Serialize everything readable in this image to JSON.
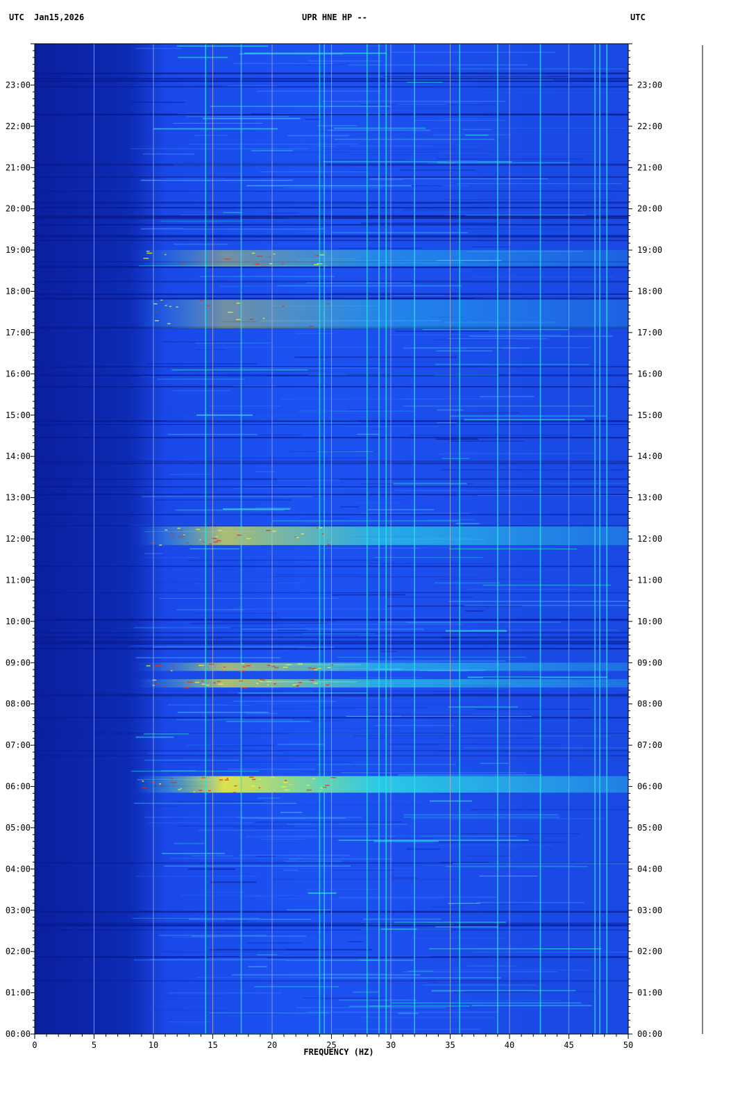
{
  "header": {
    "left_tz": "UTC",
    "date": "Jan15,2026",
    "station": "UPR HNE HP --",
    "right_tz": "UTC"
  },
  "chart_data": {
    "type": "heatmap",
    "title": "UPR HNE HP --",
    "xlabel": "FREQUENCY (HZ)",
    "ylabel": "UTC",
    "xlim": [
      0,
      50
    ],
    "ylim_hours": [
      0,
      24
    ],
    "x_ticks": [
      "0",
      "5",
      "10",
      "15",
      "20",
      "25",
      "30",
      "35",
      "40",
      "45",
      "50"
    ],
    "y_ticks": [
      "00:00",
      "01:00",
      "02:00",
      "03:00",
      "04:00",
      "05:00",
      "06:00",
      "07:00",
      "08:00",
      "09:00",
      "10:00",
      "11:00",
      "12:00",
      "13:00",
      "14:00",
      "15:00",
      "16:00",
      "17:00",
      "18:00",
      "19:00",
      "20:00",
      "21:00",
      "22:00",
      "23:00"
    ],
    "grid_x": true,
    "colors": {
      "background_low": "#0a1f9e",
      "mid": "#1f5fff",
      "high": "#2ee6e6",
      "peak_yellow": "#f2f23a",
      "peak_red": "#e8301a"
    },
    "persistent_lines_hz": [
      14.4,
      17.4,
      24.0,
      24.4,
      28.0,
      29.0,
      29.6,
      32.0,
      35.8,
      39.0,
      42.6,
      47.2,
      47.6,
      48.2
    ],
    "broadband_bursts": [
      {
        "start_hour": 5.85,
        "end_hour": 6.25,
        "intensity": 1.0
      },
      {
        "start_hour": 8.4,
        "end_hour": 8.6,
        "intensity": 0.75
      },
      {
        "start_hour": 8.8,
        "end_hour": 9.0,
        "intensity": 0.7
      },
      {
        "start_hour": 11.85,
        "end_hour": 12.3,
        "intensity": 0.75
      },
      {
        "start_hour": 17.1,
        "end_hour": 17.8,
        "intensity": 0.45
      },
      {
        "start_hour": 18.6,
        "end_hour": 19.0,
        "intensity": 0.45
      }
    ]
  }
}
